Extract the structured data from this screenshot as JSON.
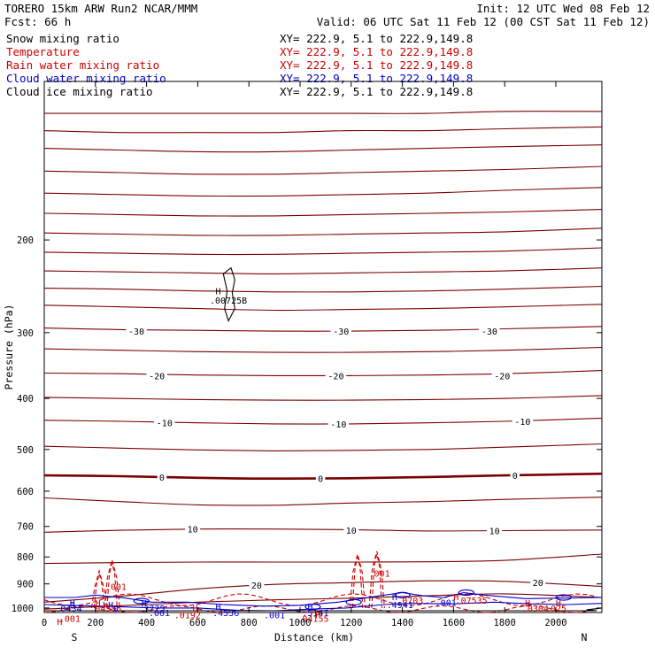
{
  "header": {
    "model": "TORERO  15km ARW   Run2    NCAR/MMM",
    "init": "Init: 12 UTC Wed 08 Feb 12",
    "fcst": "Fcst:   66 h",
    "valid": "Valid: 06 UTC Sat 11 Feb 12 (00 CST Sat 11 Feb 12)"
  },
  "legend": [
    {
      "label": "Snow mixing ratio",
      "xy": "XY= 222.9,  5.1 to 222.9,149.8",
      "color": "#000000"
    },
    {
      "label": "Temperature",
      "xy": "XY= 222.9,  5.1 to 222.9,149.8",
      "color": "#cc0000"
    },
    {
      "label": "Rain water mixing ratio",
      "xy": "XY= 222.9,  5.1 to 222.9,149.8",
      "color": "#cc0000"
    },
    {
      "label": "Cloud water mixing ratio",
      "xy": "XY= 222.9,  5.1 to 222.9,149.8",
      "color": "#0000cc"
    },
    {
      "label": "Cloud ice mixing ratio",
      "xy": "XY= 222.9,  5.1 to 222.9,149.8",
      "color": "#000000"
    }
  ],
  "chart_data": {
    "type": "cross-section",
    "xlabel": "Distance (km)",
    "ylabel": "Pressure (hPa)",
    "xlim": [
      0,
      2180
    ],
    "ylim": [
      100,
      1020
    ],
    "y_scale": "log",
    "y_inverted": true,
    "x_ticks": [
      0,
      200,
      400,
      600,
      800,
      1000,
      1200,
      1400,
      1600,
      1800,
      2000
    ],
    "y_ticks": [
      200,
      300,
      400,
      500,
      600,
      700,
      800,
      900,
      1000
    ],
    "endpoints": {
      "left": "S",
      "right": "N"
    },
    "temperature_isotherms": [
      {
        "level": -60,
        "p": [
          115,
          115,
          115,
          115,
          115,
          115,
          114,
          114
        ]
      },
      {
        "level": -57.5,
        "p": [
          124,
          125,
          125,
          125,
          124,
          124,
          123,
          122
        ]
      },
      {
        "level": -55,
        "p": [
          134,
          135,
          136,
          136,
          135,
          134,
          133,
          132
        ]
      },
      {
        "level": -52.5,
        "p": [
          148,
          149,
          150,
          150,
          149,
          148,
          147,
          145
        ]
      },
      {
        "level": -50,
        "p": [
          163,
          164,
          165,
          165,
          164,
          163,
          161,
          159
        ]
      },
      {
        "level": -47.5,
        "p": [
          178,
          179,
          180,
          180,
          179,
          178,
          177,
          175
        ]
      },
      {
        "level": -45,
        "p": [
          194,
          195,
          196,
          196,
          195,
          194,
          193,
          190
        ]
      },
      {
        "level": -42.5,
        "p": [
          211,
          212,
          213,
          213,
          212,
          211,
          210,
          207
        ]
      },
      {
        "level": -40,
        "p": [
          229,
          230,
          231,
          232,
          231,
          230,
          229,
          226
        ]
      },
      {
        "level": -37.5,
        "p": [
          247,
          248,
          250,
          251,
          251,
          250,
          248,
          245
        ]
      },
      {
        "level": -35,
        "p": [
          266,
          268,
          270,
          272,
          271,
          270,
          268,
          265
        ]
      },
      {
        "level": -30,
        "p": [
          294,
          296,
          297,
          298,
          298,
          297,
          295,
          292
        ]
      },
      {
        "level": -25,
        "p": [
          322,
          324,
          326,
          327,
          327,
          326,
          324,
          320
        ]
      },
      {
        "level": -20,
        "p": [
          358,
          359,
          361,
          362,
          362,
          361,
          359,
          354
        ]
      },
      {
        "level": -15,
        "p": [
          398,
          400,
          402,
          403,
          403,
          402,
          400,
          395
        ]
      },
      {
        "level": -10,
        "p": [
          440,
          442,
          445,
          447,
          447,
          445,
          442,
          436
        ]
      },
      {
        "level": -5,
        "p": [
          493,
          497,
          501,
          503,
          502,
          500,
          495,
          488
        ]
      },
      {
        "level": 0,
        "p": [
          560,
          562,
          566,
          568,
          567,
          564,
          560,
          556
        ]
      },
      {
        "level": 5,
        "p": [
          618,
          628,
          637,
          638,
          632,
          628,
          622,
          616
        ]
      },
      {
        "level": 10,
        "p": [
          718,
          712,
          708,
          708,
          710,
          714,
          713,
          711
        ]
      },
      {
        "level": 15,
        "p": [
          823,
          820,
          818,
          818,
          818,
          817,
          812,
          790
        ]
      },
      {
        "level": 20,
        "p": [
          975,
          950,
          920,
          902,
          895,
          888,
          890,
          910
        ]
      },
      {
        "level": 25,
        "p": [
          1005,
          990,
          975,
          965,
          958,
          948,
          940,
          955
        ]
      }
    ],
    "isotherm_x": [
      0,
      300,
      600,
      900,
      1200,
      1500,
      1800,
      2180
    ],
    "isotherm_labels": [
      {
        "text": "-30",
        "x": 360,
        "p": 298
      },
      {
        "text": "-30",
        "x": 1160,
        "p": 298
      },
      {
        "text": "-30",
        "x": 1740,
        "p": 298
      },
      {
        "text": "-20",
        "x": 440,
        "p": 362
      },
      {
        "text": "-20",
        "x": 1140,
        "p": 362
      },
      {
        "text": "-20",
        "x": 1790,
        "p": 362
      },
      {
        "text": "-10",
        "x": 470,
        "p": 445
      },
      {
        "text": "-10",
        "x": 1150,
        "p": 447
      },
      {
        "text": "-10",
        "x": 1870,
        "p": 442
      },
      {
        "text": "0",
        "x": 460,
        "p": 564
      },
      {
        "text": "0",
        "x": 1080,
        "p": 568
      },
      {
        "text": "0",
        "x": 1840,
        "p": 560
      },
      {
        "text": "10",
        "x": 580,
        "p": 708
      },
      {
        "text": "10",
        "x": 1200,
        "p": 712
      },
      {
        "text": "10",
        "x": 1760,
        "p": 713
      },
      {
        "text": "20",
        "x": 830,
        "p": 904
      },
      {
        "text": "20",
        "x": 1930,
        "p": 894
      }
    ],
    "contour_labels": [
      {
        "text": "H",
        "x": 680,
        "p": 250,
        "color": "#000000"
      },
      {
        "text": ".00725B",
        "x": 720,
        "p": 260,
        "color": "#000000"
      },
      {
        "text": ".001",
        "x": 1310,
        "p": 858,
        "color": "#cc0000"
      },
      {
        "text": ".001",
        "x": 280,
        "p": 910,
        "color": "#cc0000"
      },
      {
        "text": "H",
        "x": 1610,
        "p": 952,
        "color": "#cc0000"
      },
      {
        "text": "H",
        "x": 1370,
        "p": 952,
        "color": "#0000cc"
      },
      {
        "text": ".0703",
        "x": 1430,
        "p": 966,
        "color": "#cc0000"
      },
      {
        "text": ".4941",
        "x": 1390,
        "p": 985,
        "color": "#0000cc"
      },
      {
        "text": ".001",
        "x": 1570,
        "p": 975,
        "color": "#0000cc"
      },
      {
        "text": ".07535",
        "x": 1670,
        "p": 966,
        "color": "#cc0000"
      },
      {
        "text": "H",
        "x": 1890,
        "p": 978,
        "color": "#cc0000"
      },
      {
        "text": "H",
        "x": 2010,
        "p": 978,
        "color": "#cc0000"
      },
      {
        "text": ".0304",
        "x": 1920,
        "p": 1000,
        "color": "#cc0000"
      },
      {
        "text": ".025",
        "x": 2000,
        "p": 1000,
        "color": "#cc0000"
      },
      {
        "text": "H",
        "x": 110,
        "p": 978,
        "color": "#0000cc"
      },
      {
        "text": "H",
        "x": 210,
        "p": 978,
        "color": "#cc0000"
      },
      {
        "text": "H",
        "x": 260,
        "p": 985,
        "color": "#0000cc"
      },
      {
        "text": ".0434",
        "x": 95,
        "p": 1000,
        "color": "#0000cc"
      },
      {
        "text": ".04585",
        "x": 240,
        "p": 1000,
        "color": "#cc0000"
      },
      {
        "text": "0",
        "x": 280,
        "p": 1000,
        "color": "#0000cc"
      },
      {
        "text": "H",
        "x": 390,
        "p": 978,
        "color": "#0000cc"
      },
      {
        "text": ".3775",
        "x": 420,
        "p": 1000,
        "color": "#0000cc"
      },
      {
        "text": ".001",
        "x": 450,
        "p": 1020,
        "color": "#0000cc"
      },
      {
        "text": "H",
        "x": 590,
        "p": 1000,
        "color": "#cc0000"
      },
      {
        "text": "H",
        "x": 680,
        "p": 992,
        "color": "#0000cc"
      },
      {
        "text": ".0192",
        "x": 560,
        "p": 1030,
        "color": "#cc0000"
      },
      {
        "text": ".4536",
        "x": 710,
        "p": 1020,
        "color": "#0000cc"
      },
      {
        "text": ".001",
        "x": 900,
        "p": 1030,
        "color": "#0000cc"
      },
      {
        "text": "H",
        "x": 1040,
        "p": 992,
        "color": "#0000cc"
      },
      {
        "text": ".5141",
        "x": 1060,
        "p": 1020,
        "color": "#0000cc"
      },
      {
        "text": "H",
        "x": 1070,
        "p": 1030,
        "color": "#cc0000"
      },
      {
        "text": ".04155",
        "x": 1050,
        "p": 1045,
        "color": "#cc0000"
      },
      {
        "text": "H",
        "x": 60,
        "p": 1060,
        "color": "#cc0000"
      },
      {
        "text": ".001",
        "x": 100,
        "p": 1045,
        "color": "#cc0000"
      },
      {
        "text": "0",
        "x": 110,
        "p": 985,
        "color": "#0000cc"
      }
    ]
  }
}
